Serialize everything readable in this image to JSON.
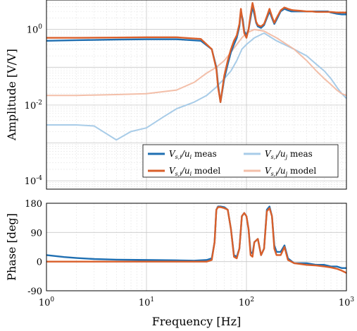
{
  "chart_data": [
    {
      "type": "line",
      "panel": "amplitude",
      "ylabel": "Amplitude [V/V]",
      "xlabel": "",
      "xscale": "log",
      "yscale": "log",
      "xlim": [
        1,
        1000
      ],
      "ylim": [
        6e-05,
        6
      ],
      "grid": true,
      "legend_position": "bottom-right",
      "ytick_labels": [
        "10^0",
        "10^-2",
        "10^-4"
      ],
      "colors": {
        "meas": "#1f6fb2",
        "model": "#d95f2a",
        "meas_coupling": "#9ec7e6",
        "model_coupling": "#f2b8a0"
      },
      "legend": [
        {
          "label": "V_{s,i}/u_i meas",
          "color": "#1f6fb2",
          "style": "solid-bold"
        },
        {
          "label": "V_{s,i}/u_j meas",
          "color": "#9ec7e6",
          "style": "solid-light"
        },
        {
          "label": "V_{s,i}/u_i model",
          "color": "#d95f2a",
          "style": "solid-bold"
        },
        {
          "label": "V_{s,i}/u_j model",
          "color": "#f2b8a0",
          "style": "solid-light"
        }
      ],
      "series": [
        {
          "name": "V_{s,i}/u_i meas",
          "x": [
            1,
            2,
            5,
            10,
            20,
            35,
            45,
            50,
            52,
            55,
            60,
            65,
            70,
            75,
            80,
            85,
            88,
            92,
            95,
            100,
            105,
            110,
            115,
            120,
            125,
            130,
            140,
            150,
            160,
            170,
            180,
            190,
            200,
            220,
            240,
            260,
            280,
            300,
            350,
            400,
            450,
            500,
            550,
            600,
            650,
            700,
            800,
            900,
            1000
          ],
          "y": [
            0.5,
            0.52,
            0.54,
            0.55,
            0.55,
            0.5,
            0.3,
            0.1,
            0.035,
            0.012,
            0.05,
            0.12,
            0.25,
            0.4,
            0.6,
            1.2,
            3.0,
            1.8,
            0.9,
            0.7,
            1.0,
            2.0,
            4.0,
            2.5,
            1.5,
            1.2,
            1.1,
            1.3,
            2.0,
            3.0,
            2.0,
            1.4,
            1.8,
            3.0,
            3.5,
            3.2,
            3.0,
            3.0,
            3.0,
            3.0,
            3.0,
            3.0,
            3.0,
            3.0,
            3.0,
            2.8,
            2.6,
            2.5,
            2.5
          ]
        },
        {
          "name": "V_{s,i}/u_i model",
          "x": [
            1,
            2,
            5,
            10,
            20,
            35,
            45,
            50,
            52,
            55,
            60,
            65,
            70,
            75,
            80,
            85,
            88,
            92,
            95,
            100,
            105,
            110,
            115,
            120,
            125,
            130,
            140,
            150,
            160,
            170,
            180,
            190,
            200,
            220,
            240,
            260,
            280,
            300,
            350,
            400,
            450,
            500,
            550,
            600,
            650,
            700,
            800,
            900,
            1000
          ],
          "y": [
            0.6,
            0.6,
            0.61,
            0.62,
            0.62,
            0.56,
            0.3,
            0.09,
            0.03,
            0.012,
            0.06,
            0.15,
            0.3,
            0.5,
            0.7,
            1.4,
            3.5,
            1.5,
            0.8,
            0.6,
            1.0,
            2.5,
            5.0,
            3.0,
            1.6,
            1.3,
            1.2,
            1.4,
            2.2,
            3.5,
            2.2,
            1.5,
            2.0,
            3.2,
            3.8,
            3.5,
            3.3,
            3.2,
            3.1,
            3.0,
            3.0,
            2.9,
            2.9,
            2.9,
            2.9,
            2.9,
            2.8,
            2.8,
            2.8
          ]
        },
        {
          "name": "V_{s,i}/u_j meas",
          "x": [
            1,
            2,
            3,
            5,
            7,
            10,
            15,
            20,
            30,
            40,
            50,
            60,
            70,
            80,
            90,
            100,
            120,
            150,
            200,
            300,
            400,
            500,
            600,
            700,
            800,
            900,
            1000
          ],
          "y": [
            0.003,
            0.003,
            0.0028,
            0.0012,
            0.002,
            0.0025,
            0.005,
            0.008,
            0.012,
            0.018,
            0.03,
            0.05,
            0.08,
            0.15,
            0.3,
            0.4,
            0.6,
            0.8,
            0.5,
            0.3,
            0.2,
            0.12,
            0.08,
            0.05,
            0.03,
            0.02,
            0.015
          ]
        },
        {
          "name": "V_{s,i}/u_j model",
          "x": [
            1,
            2,
            5,
            10,
            20,
            30,
            40,
            50,
            60,
            70,
            80,
            90,
            100,
            120,
            150,
            200,
            300,
            400,
            500,
            600,
            700,
            800,
            900,
            1000
          ],
          "y": [
            0.018,
            0.018,
            0.019,
            0.02,
            0.025,
            0.04,
            0.07,
            0.1,
            0.15,
            0.25,
            0.4,
            0.6,
            0.8,
            1.0,
            0.9,
            0.6,
            0.3,
            0.15,
            0.08,
            0.05,
            0.035,
            0.025,
            0.02,
            0.018
          ]
        }
      ]
    },
    {
      "type": "line",
      "panel": "phase",
      "ylabel": "Phase [deg]",
      "xlabel": "Frequency [Hz]",
      "xscale": "log",
      "xlim": [
        1,
        1000
      ],
      "ylim": [
        -90,
        180
      ],
      "yticks": [
        -90,
        0,
        90,
        180
      ],
      "xtick_labels": [
        "10^0",
        "10^1",
        "10^2",
        "10^3"
      ],
      "grid": true,
      "series": [
        {
          "name": "V_{s,i}/u_i meas",
          "x": [
            1,
            1.5,
            2,
            3,
            5,
            10,
            20,
            30,
            40,
            45,
            48,
            50,
            52,
            55,
            60,
            65,
            70,
            75,
            80,
            85,
            90,
            95,
            100,
            105,
            110,
            115,
            120,
            130,
            140,
            150,
            160,
            170,
            180,
            190,
            200,
            220,
            240,
            260,
            300,
            400,
            500,
            600,
            700,
            800,
            900,
            1000
          ],
          "y": [
            20,
            14,
            11,
            8,
            6,
            5,
            4,
            3,
            5,
            10,
            60,
            160,
            170,
            170,
            168,
            160,
            100,
            20,
            15,
            40,
            140,
            150,
            140,
            100,
            30,
            25,
            60,
            70,
            20,
            40,
            160,
            170,
            140,
            50,
            30,
            30,
            50,
            10,
            -5,
            -5,
            -10,
            -10,
            -15,
            -15,
            -20,
            -20
          ]
        },
        {
          "name": "V_{s,i}/u_i model",
          "x": [
            1,
            2,
            3,
            5,
            10,
            20,
            30,
            40,
            45,
            48,
            50,
            52,
            55,
            60,
            65,
            70,
            75,
            80,
            85,
            90,
            95,
            100,
            105,
            110,
            115,
            120,
            130,
            140,
            150,
            160,
            170,
            180,
            190,
            200,
            220,
            240,
            260,
            300,
            400,
            500,
            600,
            700,
            800,
            900,
            1000
          ],
          "y": [
            0,
            0,
            0,
            0,
            0,
            0,
            0,
            0,
            5,
            60,
            160,
            168,
            168,
            165,
            160,
            100,
            15,
            10,
            40,
            140,
            150,
            140,
            100,
            20,
            15,
            60,
            70,
            20,
            40,
            155,
            165,
            140,
            40,
            20,
            20,
            45,
            5,
            -5,
            -10,
            -12,
            -15,
            -18,
            -22,
            -28,
            -35
          ]
        }
      ]
    }
  ]
}
